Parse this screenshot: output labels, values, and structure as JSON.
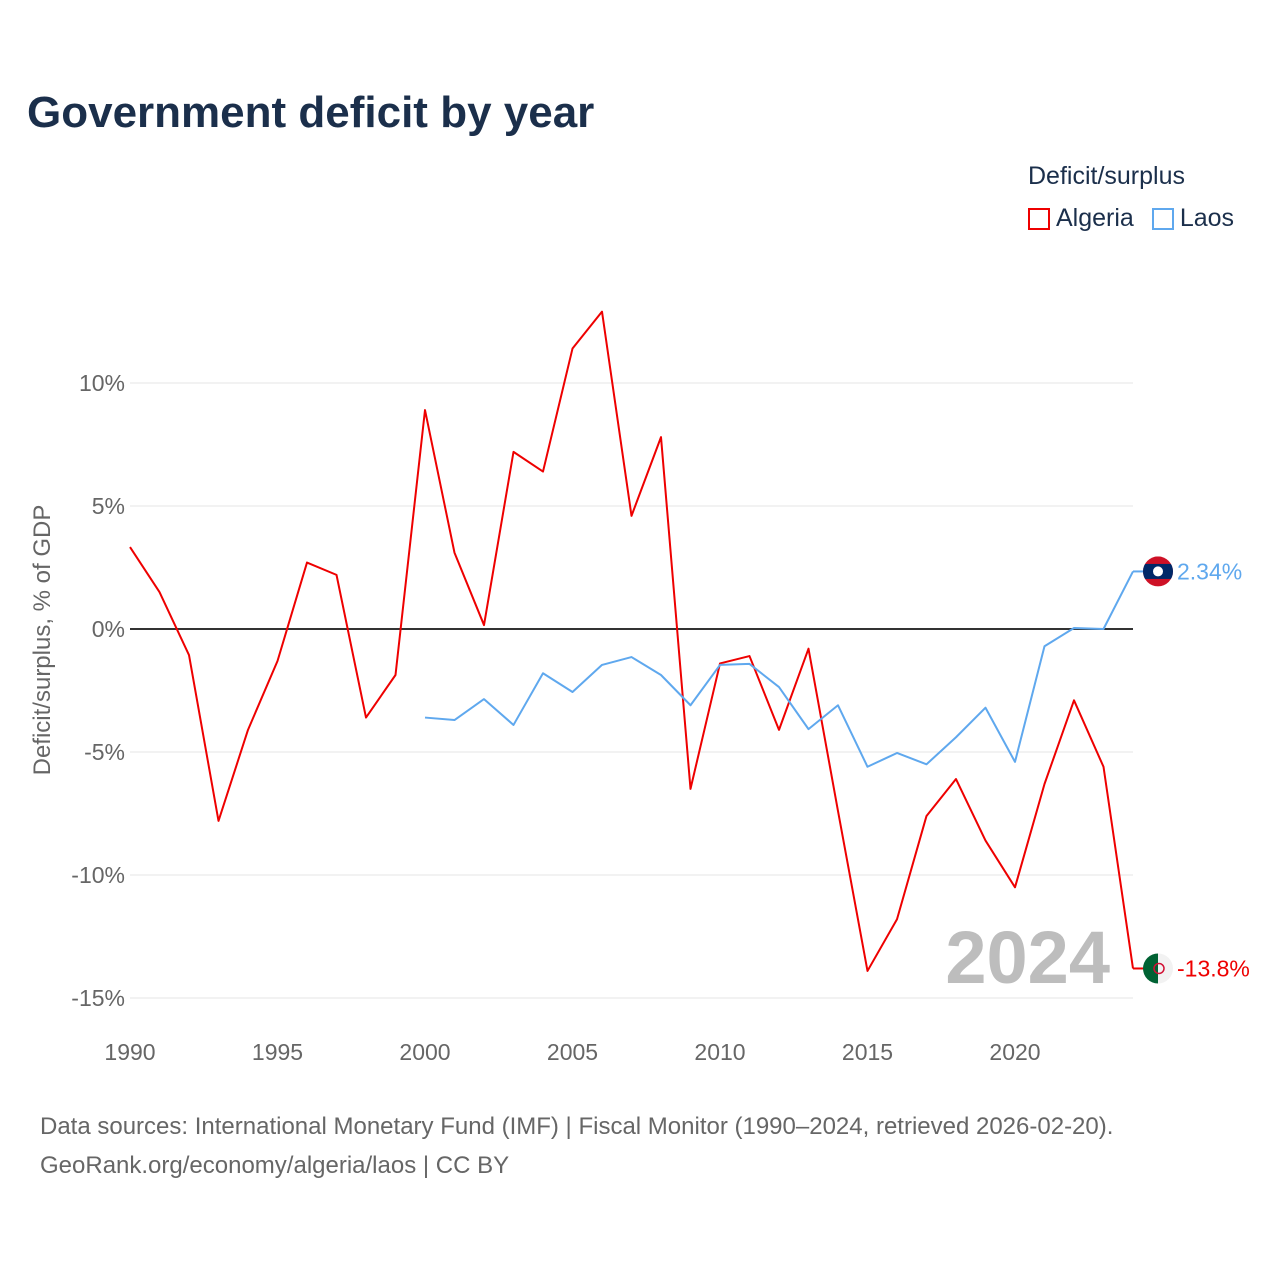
{
  "title": "Government deficit by year",
  "legend": {
    "title": "Deficit/surplus",
    "items": [
      {
        "label": "Algeria",
        "color": "#ee0000"
      },
      {
        "label": "Laos",
        "color": "#5fa8ee"
      }
    ]
  },
  "current_year": "2024",
  "footer": {
    "line1": "Data sources: International Monetary Fund (IMF) | Fiscal Monitor (1990–2024, retrieved 2026-02-20).",
    "line2": "GeoRank.org/economy/algeria/laos | CC BY"
  },
  "chart_data": {
    "type": "line",
    "title": "Government deficit by year",
    "xlabel": "",
    "ylabel": "Deficit/surplus, % of GDP",
    "xlim": [
      1990,
      2024
    ],
    "ylim": [
      -15,
      13
    ],
    "xticks": [
      1990,
      1995,
      2000,
      2005,
      2010,
      2015,
      2020
    ],
    "xtick_labels": [
      "1990",
      "1995",
      "2000",
      "2005",
      "2010",
      "2015",
      "2020"
    ],
    "yticks": [
      10,
      5,
      0,
      -5,
      -10,
      -15
    ],
    "ytick_labels": [
      "10%",
      "5%",
      "0%",
      "-5%",
      "-10%",
      "-15%"
    ],
    "grid": true,
    "legend_position": "top-right",
    "series": [
      {
        "name": "Algeria",
        "color": "#ee0000",
        "end_label": "-13.8%",
        "x": [
          1990,
          1991,
          1992,
          1993,
          1994,
          1995,
          1996,
          1997,
          1998,
          1999,
          2000,
          2001,
          2002,
          2003,
          2004,
          2005,
          2006,
          2007,
          2008,
          2009,
          2010,
          2011,
          2012,
          2013,
          2014,
          2015,
          2016,
          2017,
          2018,
          2019,
          2020,
          2021,
          2022,
          2023,
          2024
        ],
        "values": [
          3.33,
          1.5,
          -1.06,
          -7.8,
          -4.1,
          -1.3,
          2.7,
          2.2,
          -3.6,
          -1.87,
          8.9,
          3.1,
          0.16,
          7.2,
          6.4,
          11.4,
          12.9,
          4.6,
          7.8,
          -6.5,
          -1.4,
          -1.1,
          -4.1,
          -0.8,
          -7.4,
          -13.9,
          -11.8,
          -7.6,
          -6.1,
          -8.6,
          -10.5,
          -6.3,
          -2.9,
          -5.6,
          -13.8
        ]
      },
      {
        "name": "Laos",
        "color": "#5fa8ee",
        "end_label": "2.34%",
        "x": [
          2000,
          2001,
          2002,
          2003,
          2004,
          2005,
          2006,
          2007,
          2008,
          2009,
          2010,
          2011,
          2012,
          2013,
          2014,
          2015,
          2016,
          2017,
          2018,
          2019,
          2020,
          2021,
          2022,
          2023,
          2024
        ],
        "values": [
          -3.6,
          -3.7,
          -2.85,
          -3.9,
          -1.8,
          -2.56,
          -1.46,
          -1.14,
          -1.87,
          -3.1,
          -1.46,
          -1.42,
          -2.36,
          -4.07,
          -3.1,
          -5.6,
          -5.04,
          -5.5,
          -4.4,
          -3.2,
          -5.4,
          -0.7,
          0.04,
          0,
          2.34
        ]
      }
    ]
  }
}
